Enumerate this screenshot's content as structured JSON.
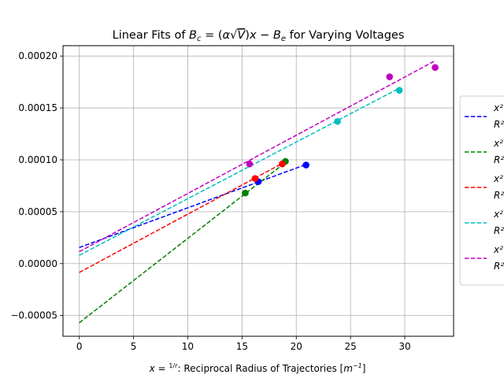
{
  "chart_data": {
    "type": "scatter",
    "title": "Linear Fits of B_c = (α√V)x − B_e for Varying Voltages",
    "xlabel": "x = 1/r: Reciprocal Radius of Trajectories [m^-1]",
    "ylabel": "",
    "xlim": [
      -1.5,
      34.5
    ],
    "ylim": [
      -7e-05,
      0.00021
    ],
    "xticks": [
      0,
      5,
      10,
      15,
      20,
      25,
      30
    ],
    "xtick_labels": [
      "0",
      "5",
      "10",
      "15",
      "20",
      "25",
      "30"
    ],
    "yticks": [
      -5e-05,
      0,
      5e-05,
      0.0001,
      0.00015,
      0.0002
    ],
    "ytick_labels": [
      "−0.00005",
      "0.00000",
      "0.00005",
      "0.00010",
      "0.00015",
      "0.00020"
    ],
    "grid": true,
    "legend_position": "right",
    "series": [
      {
        "color": "#0000ff",
        "points": [
          [
            16.5,
            7.9e-05
          ],
          [
            20.9,
            9.5e-05
          ]
        ],
        "fit": [
          [
            0,
            1.55e-05
          ],
          [
            20.9,
            9.55e-05
          ]
        ],
        "legend_lines": [
          "x²",
          "R²"
        ]
      },
      {
        "color": "#008000",
        "points": [
          [
            15.3,
            6.8e-05
          ],
          [
            19.0,
            9.85e-05
          ]
        ],
        "fit": [
          [
            0,
            -5.7e-05
          ],
          [
            19.0,
            9.75e-05
          ]
        ],
        "legend_lines": [
          "x²",
          "R²"
        ]
      },
      {
        "color": "#ff0000",
        "points": [
          [
            16.2,
            8.2e-05
          ],
          [
            18.7,
            9.6e-05
          ]
        ],
        "fit": [
          [
            0,
            -8.5e-06
          ],
          [
            18.7,
            9.65e-05
          ]
        ],
        "legend_lines": [
          "x²",
          "R²"
        ]
      },
      {
        "color": "#00bfbf",
        "points": [
          [
            23.8,
            0.000137
          ],
          [
            29.5,
            0.000167
          ]
        ],
        "fit": [
          [
            0,
            8e-06
          ],
          [
            29.5,
            0.000169
          ]
        ],
        "legend_lines": [
          "x²",
          "R²"
        ]
      },
      {
        "color": "#bf00bf",
        "points": [
          [
            15.7,
            9.6e-05
          ],
          [
            28.6,
            0.00018
          ],
          [
            32.8,
            0.000189
          ]
        ],
        "fit": [
          [
            0,
            1.15e-05
          ],
          [
            32.8,
            0.0001955
          ]
        ],
        "legend_lines": [
          "x²",
          "R²"
        ]
      }
    ]
  }
}
